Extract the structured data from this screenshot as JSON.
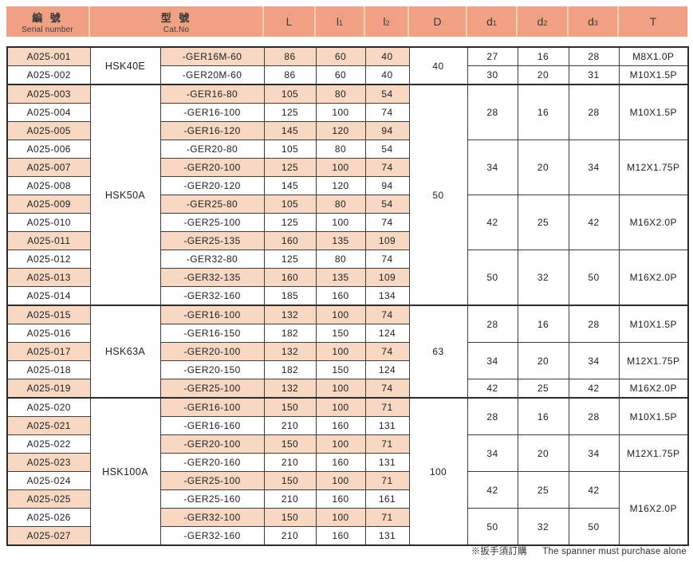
{
  "header": {
    "serial_zh": "編 號",
    "serial_en": "Serial number",
    "catno_zh": "型 號",
    "catno_en": "Cat.No",
    "value_cols": [
      "L",
      "l1",
      "l2",
      "D",
      "d1",
      "d2",
      "d3",
      "T"
    ]
  },
  "table": {
    "sections": [
      {
        "model": "HSK40E",
        "D": "40",
        "rows": [
          {
            "serial": "A025-001",
            "cat": "-GER16M-60",
            "L": "86",
            "l1": "60",
            "l2": "40",
            "serial_shade": true,
            "shade": true
          },
          {
            "serial": "A025-002",
            "cat": "-GER20M-60",
            "L": "86",
            "l1": "60",
            "l2": "40",
            "serial_shade": false,
            "shade": false
          }
        ],
        "groups": [
          {
            "span": 1,
            "d1": "27",
            "d2": "16",
            "d3": "28",
            "t": "M8X1.0P",
            "t_span": 1
          },
          {
            "span": 1,
            "d1": "30",
            "d2": "20",
            "d3": "31",
            "t": "M10X1.5P",
            "t_span": 1
          }
        ]
      },
      {
        "model": "HSK50A",
        "D": "50",
        "rows": [
          {
            "serial": "A025-003",
            "cat": "-GER16-80",
            "L": "105",
            "l1": "80",
            "l2": "54",
            "serial_shade": true,
            "shade": true
          },
          {
            "serial": "A025-004",
            "cat": "-GER16-100",
            "L": "125",
            "l1": "100",
            "l2": "74",
            "serial_shade": false,
            "shade": false
          },
          {
            "serial": "A025-005",
            "cat": "-GER16-120",
            "L": "145",
            "l1": "120",
            "l2": "94",
            "serial_shade": true,
            "shade": true
          },
          {
            "serial": "A025-006",
            "cat": "-GER20-80",
            "L": "105",
            "l1": "80",
            "l2": "54",
            "serial_shade": false,
            "shade": false
          },
          {
            "serial": "A025-007",
            "cat": "-GER20-100",
            "L": "125",
            "l1": "100",
            "l2": "74",
            "serial_shade": true,
            "shade": true
          },
          {
            "serial": "A025-008",
            "cat": "-GER20-120",
            "L": "145",
            "l1": "120",
            "l2": "94",
            "serial_shade": false,
            "shade": false
          },
          {
            "serial": "A025-009",
            "cat": "-GER25-80",
            "L": "105",
            "l1": "80",
            "l2": "54",
            "serial_shade": true,
            "shade": true
          },
          {
            "serial": "A025-010",
            "cat": "-GER25-100",
            "L": "125",
            "l1": "100",
            "l2": "74",
            "serial_shade": false,
            "shade": false
          },
          {
            "serial": "A025-011",
            "cat": "-GER25-135",
            "L": "160",
            "l1": "135",
            "l2": "109",
            "serial_shade": true,
            "shade": true
          },
          {
            "serial": "A025-012",
            "cat": "-GER32-80",
            "L": "125",
            "l1": "80",
            "l2": "74",
            "serial_shade": false,
            "shade": false
          },
          {
            "serial": "A025-013",
            "cat": "-GER32-135",
            "L": "160",
            "l1": "135",
            "l2": "109",
            "serial_shade": true,
            "shade": true
          },
          {
            "serial": "A025-014",
            "cat": "-GER32-160",
            "L": "185",
            "l1": "160",
            "l2": "134",
            "serial_shade": false,
            "shade": false
          }
        ],
        "groups": [
          {
            "span": 3,
            "d1": "28",
            "d2": "16",
            "d3": "28",
            "t": "M10X1.5P",
            "t_span": 3
          },
          {
            "span": 3,
            "d1": "34",
            "d2": "20",
            "d3": "34",
            "t": "M12X1.75P",
            "t_span": 3
          },
          {
            "span": 3,
            "d1": "42",
            "d2": "25",
            "d3": "42",
            "t": "M16X2.0P",
            "t_span": 3
          },
          {
            "span": 3,
            "d1": "50",
            "d2": "32",
            "d3": "50",
            "t": "M16X2.0P",
            "t_span": 3
          }
        ]
      },
      {
        "model": "HSK63A",
        "D": "63",
        "rows": [
          {
            "serial": "A025-015",
            "cat": "-GER16-100",
            "L": "132",
            "l1": "100",
            "l2": "74",
            "serial_shade": true,
            "shade": true
          },
          {
            "serial": "A025-016",
            "cat": "-GER16-150",
            "L": "182",
            "l1": "150",
            "l2": "124",
            "serial_shade": false,
            "shade": false
          },
          {
            "serial": "A025-017",
            "cat": "-GER20-100",
            "L": "132",
            "l1": "100",
            "l2": "74",
            "serial_shade": true,
            "shade": true
          },
          {
            "serial": "A025-018",
            "cat": "-GER20-150",
            "L": "182",
            "l1": "150",
            "l2": "124",
            "serial_shade": false,
            "shade": false
          },
          {
            "serial": "A025-019",
            "cat": "-GER25-100",
            "L": "132",
            "l1": "100",
            "l2": "74",
            "serial_shade": true,
            "shade": true
          }
        ],
        "groups": [
          {
            "span": 2,
            "d1": "28",
            "d2": "16",
            "d3": "28",
            "t": "M10X1.5P",
            "t_span": 2
          },
          {
            "span": 2,
            "d1": "34",
            "d2": "20",
            "d3": "34",
            "t": "M12X1.75P",
            "t_span": 2
          },
          {
            "span": 1,
            "d1": "42",
            "d2": "25",
            "d3": "42",
            "t": "M16X2.0P",
            "t_span": 1
          }
        ]
      },
      {
        "model": "HSK100A",
        "D": "100",
        "rows": [
          {
            "serial": "A025-020",
            "cat": "-GER16-100",
            "L": "150",
            "l1": "100",
            "l2": "71",
            "serial_shade": false,
            "shade": true
          },
          {
            "serial": "A025-021",
            "cat": "-GER16-160",
            "L": "210",
            "l1": "160",
            "l2": "131",
            "serial_shade": true,
            "shade": false
          },
          {
            "serial": "A025-022",
            "cat": "-GER20-100",
            "L": "150",
            "l1": "100",
            "l2": "71",
            "serial_shade": false,
            "shade": true
          },
          {
            "serial": "A025-023",
            "cat": "-GER20-160",
            "L": "210",
            "l1": "160",
            "l2": "131",
            "serial_shade": true,
            "shade": false
          },
          {
            "serial": "A025-024",
            "cat": "-GER25-100",
            "L": "150",
            "l1": "100",
            "l2": "71",
            "serial_shade": false,
            "shade": true
          },
          {
            "serial": "A025-025",
            "cat": "-GER25-160",
            "L": "210",
            "l1": "160",
            "l2": "161",
            "serial_shade": true,
            "shade": false
          },
          {
            "serial": "A025-026",
            "cat": "-GER32-100",
            "L": "150",
            "l1": "100",
            "l2": "71",
            "serial_shade": false,
            "shade": true
          },
          {
            "serial": "A025-027",
            "cat": "-GER32-160",
            "L": "210",
            "l1": "160",
            "l2": "131",
            "serial_shade": true,
            "shade": false
          }
        ],
        "groups": [
          {
            "span": 2,
            "d1": "28",
            "d2": "16",
            "d3": "28",
            "t": "M10X1.5P",
            "t_span": 2
          },
          {
            "span": 2,
            "d1": "34",
            "d2": "20",
            "d3": "34",
            "t": "M12X1.75P",
            "t_span": 2
          },
          {
            "span": 2,
            "d1": "42",
            "d2": "25",
            "d3": "42",
            "t": "M16X2.0P",
            "t_span": 4
          },
          {
            "span": 2,
            "d1": "50",
            "d2": "32",
            "d3": "50",
            "t": null
          }
        ]
      }
    ]
  },
  "footnote": {
    "zh": "※扳手須訂購",
    "en": "The spanner must purchase alone"
  },
  "colors": {
    "header_bg": "#F0A183",
    "header_sep": "#F8CFB4",
    "stripe_bg": "#F8D7C3",
    "border": "#3D3D3D",
    "outer_border": "#2B2B2B",
    "text": "#222222"
  }
}
